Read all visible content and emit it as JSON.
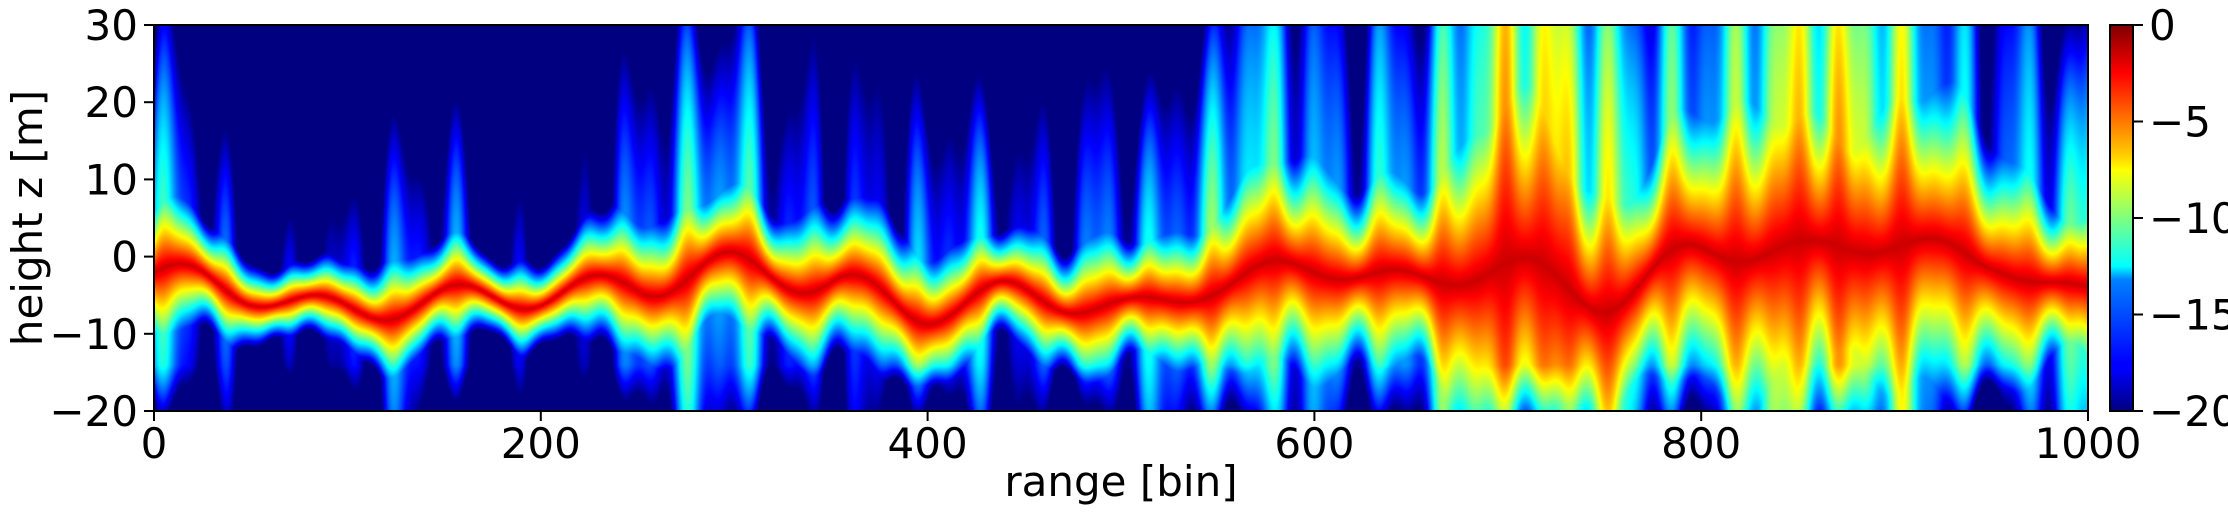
{
  "chart_data": {
    "type": "heatmap",
    "title": "",
    "xlabel": "range [bin]",
    "ylabel": "height z [m]",
    "xlim": [
      0,
      1000
    ],
    "ylim": [
      -20,
      30
    ],
    "x_ticks": [
      "0",
      "200",
      "400",
      "600",
      "800",
      "1000"
    ],
    "y_ticks": [
      "30",
      "20",
      "10",
      "0",
      "−10",
      "−20"
    ],
    "colorbar": {
      "colormap": "jet",
      "range": [
        -20,
        0
      ],
      "ticks": [
        "0",
        "−5",
        "−10",
        "−15",
        "−20"
      ]
    },
    "ridge_profile": {
      "x": [
        0,
        50,
        100,
        150,
        200,
        250,
        300,
        350,
        400,
        450,
        500,
        550,
        600,
        650,
        700,
        750,
        800,
        850,
        900,
        950,
        1000
      ],
      "peak_height_z": [
        -3,
        -5,
        -6,
        -5,
        -6,
        -4,
        0,
        -3,
        -8,
        -5,
        -6,
        -3,
        -2,
        -4,
        0,
        -5,
        0,
        0,
        3,
        0,
        -6
      ],
      "half_width_m": [
        7,
        6,
        6,
        6,
        7,
        8,
        10,
        9,
        10,
        7,
        8,
        11,
        12,
        14,
        18,
        16,
        16,
        17,
        18,
        16,
        10
      ],
      "background_top_db": [
        -16,
        -18,
        -19,
        -19,
        -19,
        -17,
        -15,
        -16,
        -17,
        -19,
        -13,
        -14,
        -16,
        -11,
        -10,
        -10,
        -11,
        -10,
        -10,
        -14,
        -14
      ]
    }
  }
}
